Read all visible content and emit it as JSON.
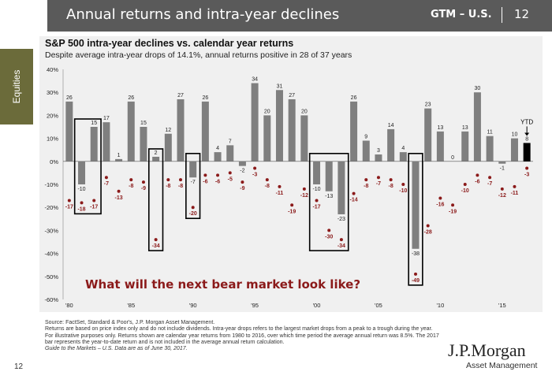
{
  "header": {
    "title": "Annual returns and intra-year declines",
    "tag": "GTM – U.S.",
    "page": "12"
  },
  "sidebar": {
    "label": "Equities"
  },
  "chart_data": {
    "type": "bar",
    "title": "S&P 500 intra-year declines vs. calendar year returns",
    "subtitle": "Despite average intra-year drops of 14.1%, annual returns positive in 28 of 37 years",
    "years": [
      1980,
      1981,
      1982,
      1983,
      1984,
      1985,
      1986,
      1987,
      1988,
      1989,
      1990,
      1991,
      1992,
      1993,
      1994,
      1995,
      1996,
      1997,
      1998,
      1999,
      2000,
      2001,
      2002,
      2003,
      2004,
      2005,
      2006,
      2007,
      2008,
      2009,
      2010,
      2011,
      2012,
      2013,
      2014,
      2015,
      2016,
      2017
    ],
    "annual_returns": [
      26,
      -10,
      15,
      17,
      1,
      26,
      15,
      2,
      12,
      27,
      -7,
      26,
      4,
      7,
      -2,
      34,
      20,
      31,
      27,
      20,
      -10,
      -13,
      -23,
      26,
      9,
      3,
      14,
      4,
      -38,
      23,
      13,
      0,
      13,
      30,
      11,
      -1,
      10,
      8
    ],
    "intra_year_declines": [
      -17,
      -18,
      -17,
      -7,
      -13,
      -8,
      -9,
      -34,
      -8,
      -8,
      -20,
      -6,
      -6,
      -5,
      -9,
      -3,
      -8,
      -11,
      -19,
      -12,
      -17,
      -30,
      -34,
      -14,
      -8,
      -7,
      -8,
      -10,
      -49,
      -28,
      -16,
      -19,
      -10,
      -6,
      -7,
      -12,
      -11,
      -3
    ],
    "ylim": [
      -60,
      40
    ],
    "y_ticks": [
      "40%",
      "30%",
      "20%",
      "10%",
      "0%",
      "-10%",
      "-20%",
      "-30%",
      "-40%",
      "-50%",
      "-60%"
    ],
    "x_tick_labels": [
      "'80",
      "'85",
      "'90",
      "'95",
      "'00",
      "'05",
      "'10",
      "'15"
    ],
    "ytd_label": "YTD",
    "highlight_groups": [
      [
        1981,
        1982
      ],
      [
        1987
      ],
      [
        1990
      ],
      [
        2000,
        2002
      ],
      [
        2008
      ]
    ],
    "annotation": "What will the next bear market look like?"
  },
  "footer": {
    "source": "Source: FactSet, Standard & Poor's, J.P. Morgan Asset Management.",
    "note1": "Returns are based on price index only and do not include dividends. Intra-year drops refers to the largest market drops from a peak to a trough during the year. For illustrative purposes only. Returns shown are calendar year returns from 1980 to 2016, over which time period the average annual return was 8.5%. The 2017 bar represents the year-to-date return and is not included in the average annual return calculation.",
    "guide": "Guide to the Markets – U.S. Data are as of June 30, 2017."
  },
  "brand": {
    "name": "J.P.Morgan",
    "sub": "Asset Management"
  },
  "page_number": "12",
  "colors": {
    "header_bg": "#5a5a5a",
    "sidebar_bg": "#6b6b3a",
    "bar": "#7f7f7f",
    "bar_ytd": "#000000",
    "decline": "#8b1a1a",
    "annotation": "#8b1a1a"
  }
}
